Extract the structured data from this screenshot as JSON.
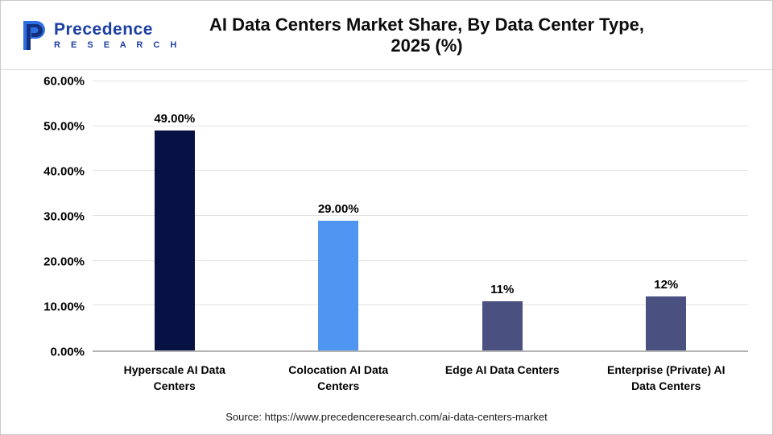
{
  "header": {
    "title": "AI Data Centers Market Share, By Data Center Type, 2025 (%)",
    "logo": {
      "brand_top": "Precedence",
      "brand_bottom": "R E S E A R C H"
    }
  },
  "chart_data": {
    "type": "bar",
    "title": "AI Data Centers Market Share, By Data Center Type, 2025 (%)",
    "categories": [
      "Hyperscale AI Data Centers",
      "Colocation AI Data Centers",
      "Edge AI Data Centers",
      "Enterprise (Private) AI Data Centers"
    ],
    "values": [
      49,
      29,
      11,
      12
    ],
    "value_labels": [
      "49.00%",
      "29.00%",
      "11%",
      "12%"
    ],
    "bar_colors": [
      "#081143",
      "#4e96f2",
      "#4a5080",
      "#4a5080"
    ],
    "xlabel": "",
    "ylabel": "",
    "ylim": [
      0,
      60
    ],
    "yticks": [
      "0.00%",
      "10.00%",
      "20.00%",
      "30.00%",
      "40.00%",
      "50.00%",
      "60.00%"
    ],
    "grid": true,
    "legend_position": "none"
  },
  "footer": {
    "source": "Source: https://www.precedenceresearch.com/ai-data-centers-market"
  },
  "colors": {
    "brand_blue": "#1b3fa3",
    "logo_light_blue": "#2f6fe4"
  }
}
